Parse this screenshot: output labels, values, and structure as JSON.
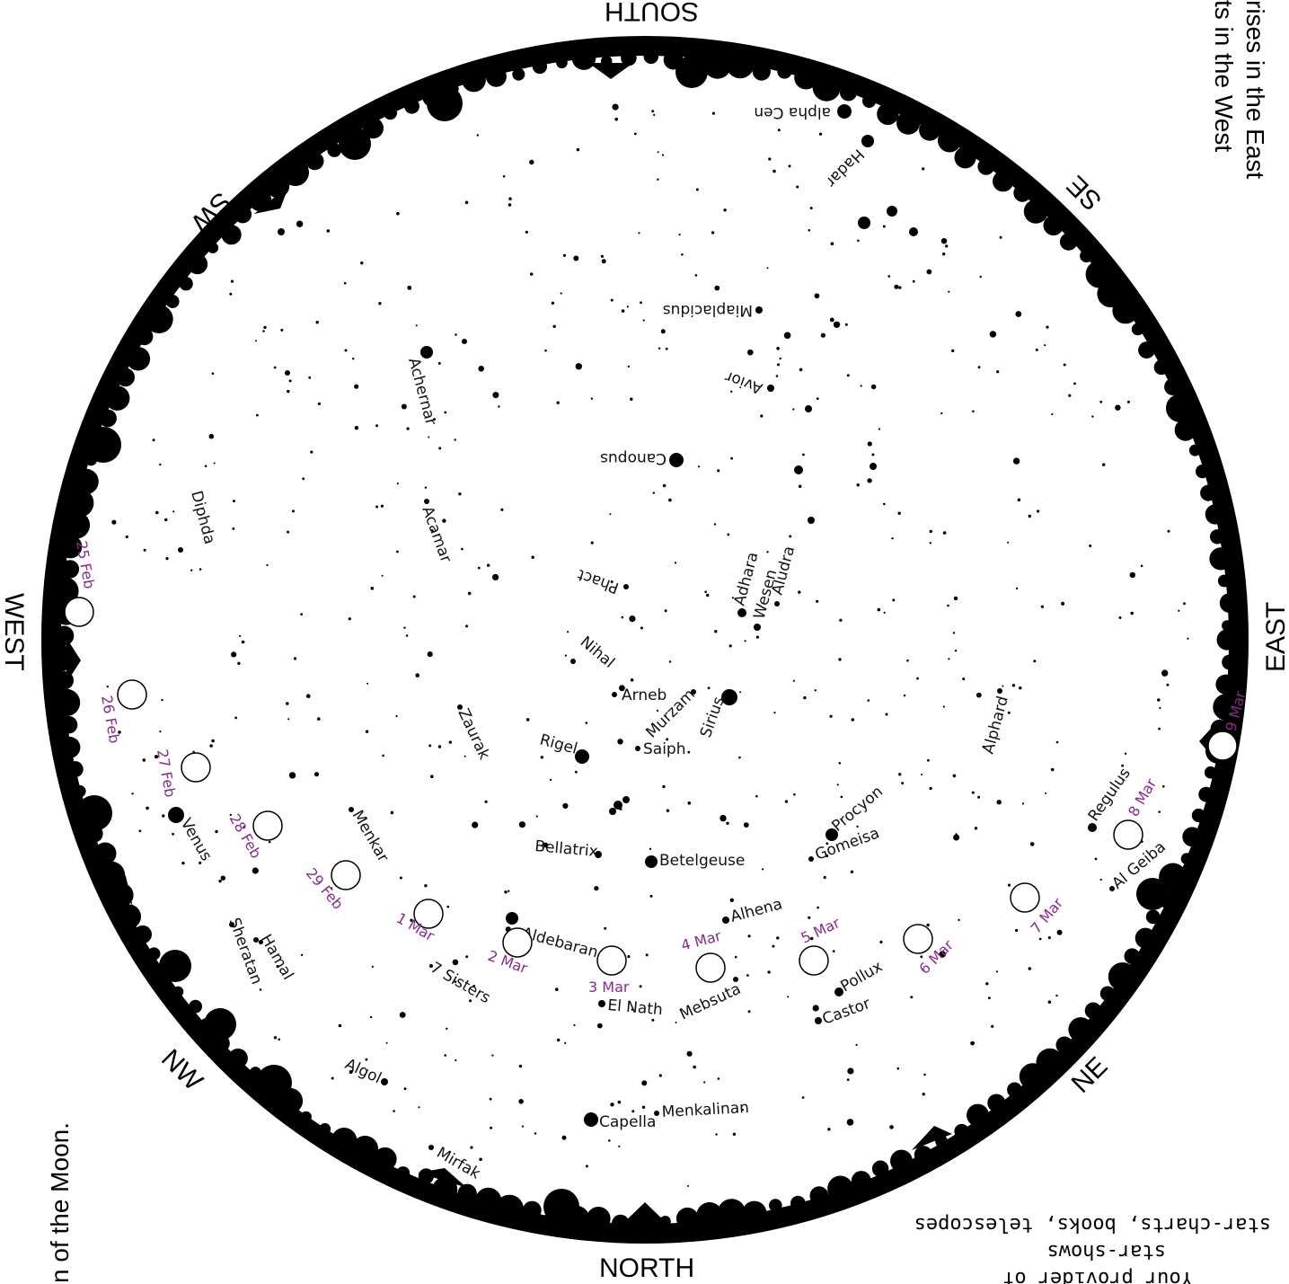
{
  "compass": {
    "north": "NORTH",
    "south": "SOUTH",
    "east": "EAST",
    "west": "WEST",
    "ne": "NE",
    "nw": "NW",
    "se": "SE",
    "sw": "SW"
  },
  "margin_text": {
    "right_line1": "rises in the East",
    "right_line2": "ts in the West",
    "left": "n of the Moon.",
    "bottom_line1": "star-charts, books, telescopes",
    "bottom_line2": "star-shows",
    "bottom_line3": "Your provider of"
  },
  "stars": [
    {
      "name": "Hadar",
      "label": "Hadar"
    },
    {
      "name": "alpha-cen",
      "label": "alpha Cen"
    },
    {
      "name": "miaplacidus",
      "label": "Miaplacidus"
    },
    {
      "name": "achernar",
      "label": "Achernar"
    },
    {
      "name": "avior",
      "label": "Avior"
    },
    {
      "name": "canopus",
      "label": "Canopus"
    },
    {
      "name": "diphda",
      "label": "Diphda"
    },
    {
      "name": "acamar",
      "label": "Acamar"
    },
    {
      "name": "phact",
      "label": "Phact"
    },
    {
      "name": "adhara",
      "label": "Adhara"
    },
    {
      "name": "wesen",
      "label": "Wesen"
    },
    {
      "name": "aludra",
      "label": "Aludra"
    },
    {
      "name": "nihal",
      "label": "Nihal"
    },
    {
      "name": "arneb",
      "label": "Arneb"
    },
    {
      "name": "murzam",
      "label": "Murzam"
    },
    {
      "name": "sirius",
      "label": "Sirius"
    },
    {
      "name": "zaurak",
      "label": "Zaurak"
    },
    {
      "name": "rigel",
      "label": "Rigel"
    },
    {
      "name": "saiph",
      "label": "Saiph"
    },
    {
      "name": "alphard",
      "label": "Alphard"
    },
    {
      "name": "regulus",
      "label": "Regulus"
    },
    {
      "name": "procyon",
      "label": "Procyon"
    },
    {
      "name": "gomeisa",
      "label": "Gomeisa"
    },
    {
      "name": "bellatrix",
      "label": "Bellatrix"
    },
    {
      "name": "betelgeuse",
      "label": "Betelgeuse"
    },
    {
      "name": "menkar",
      "label": "Menkar"
    },
    {
      "name": "venus",
      "label": "Venus"
    },
    {
      "name": "al-geiba",
      "label": "Al Geiba"
    },
    {
      "name": "alhena",
      "label": "Alhena"
    },
    {
      "name": "aldebaran",
      "label": "Aldebaran"
    },
    {
      "name": "sheratan",
      "label": "Sheratan"
    },
    {
      "name": "hamal",
      "label": "Hamal"
    },
    {
      "name": "seven-sisters",
      "label": "7 Sisters"
    },
    {
      "name": "el-nath",
      "label": "El Nath"
    },
    {
      "name": "mebsuta",
      "label": "Mebsuta"
    },
    {
      "name": "pollux",
      "label": "Pollux"
    },
    {
      "name": "castor",
      "label": "Castor"
    },
    {
      "name": "algol",
      "label": "Algol"
    },
    {
      "name": "capella",
      "label": "Capella"
    },
    {
      "name": "menkalinan",
      "label": "Menkalinan"
    },
    {
      "name": "mirfak",
      "label": "Mirfak"
    }
  ],
  "moon_positions": [
    {
      "label": "25 Feb"
    },
    {
      "label": "26 Feb"
    },
    {
      "label": "27 Feb"
    },
    {
      "label": "28 Feb"
    },
    {
      "label": "29 Feb"
    },
    {
      "label": "1 Mar"
    },
    {
      "label": "2 Mar"
    },
    {
      "label": "3 Mar"
    },
    {
      "label": "4 Mar"
    },
    {
      "label": "5 Mar"
    },
    {
      "label": "6 Mar"
    },
    {
      "label": "7 Mar"
    },
    {
      "label": "8 Mar"
    },
    {
      "label": "9 Mar"
    }
  ],
  "colors": {
    "horizon": "#000000",
    "sky": "#ffffff",
    "moon_label": "#8a2a8c",
    "star": "#000000"
  }
}
